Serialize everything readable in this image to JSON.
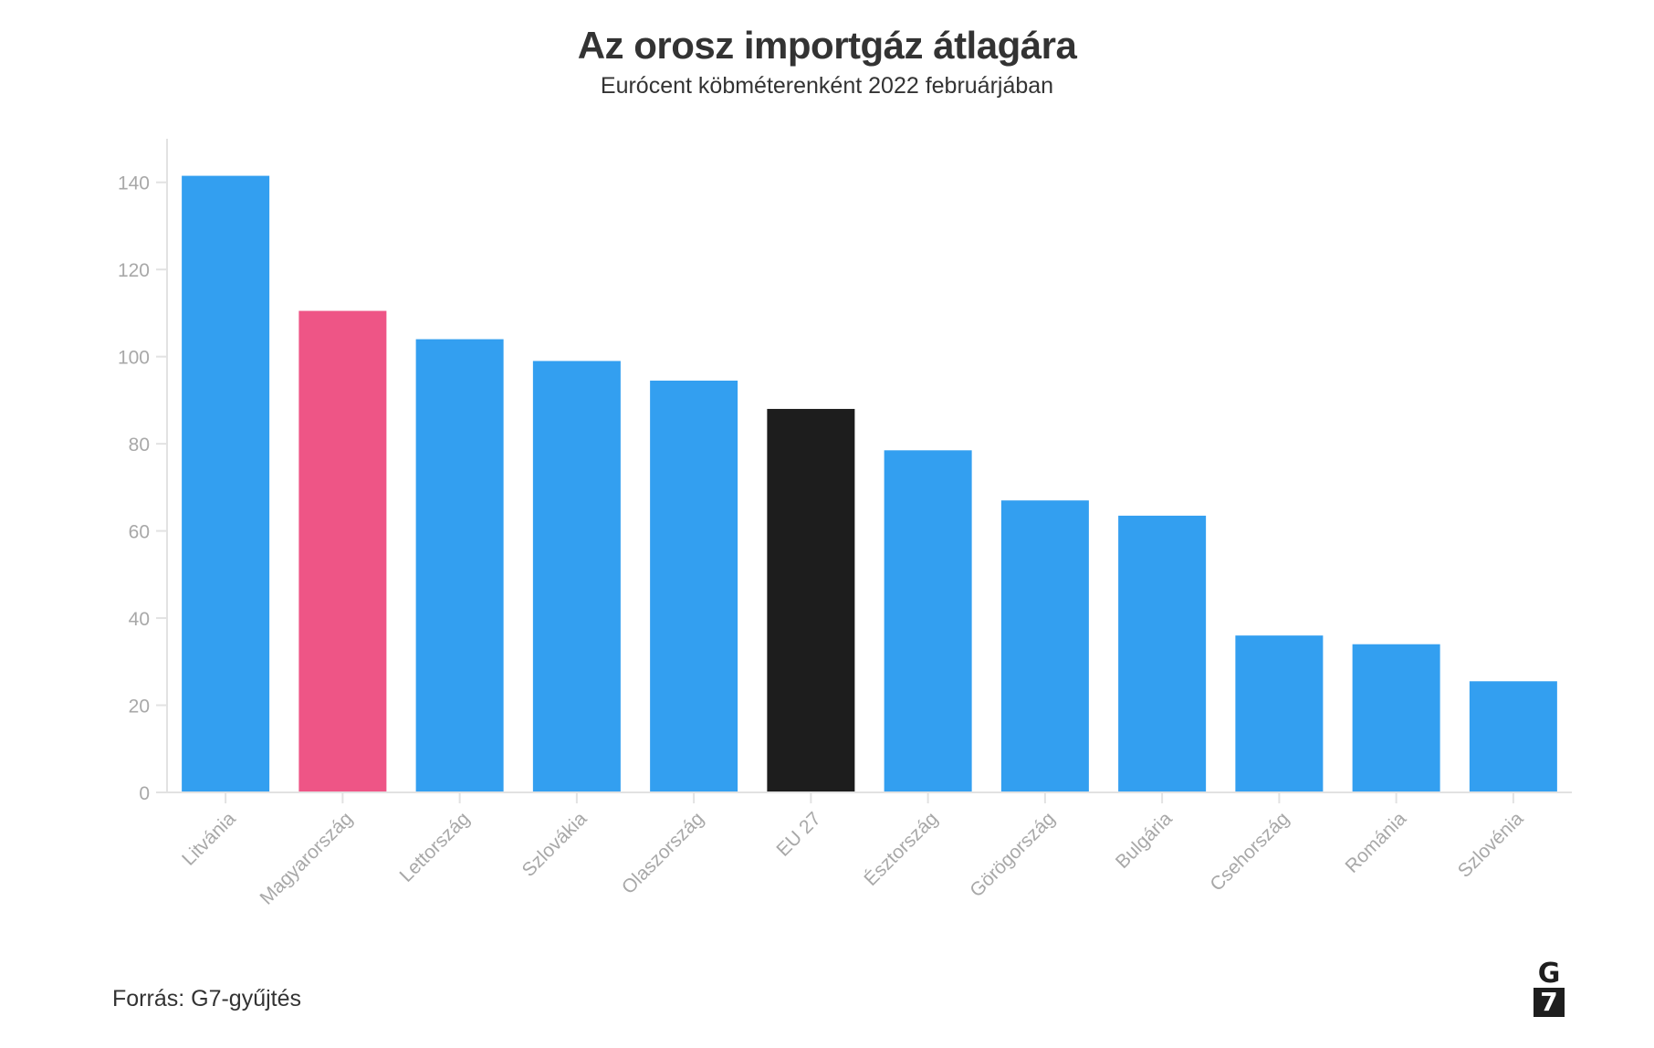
{
  "title": "Az orosz importgáz átlagára",
  "subtitle": "Eurócent köbméterenként 2022 februárjában",
  "source": "Forrás: G7-gyűjtés",
  "logo": {
    "top": "G",
    "bottom": "7"
  },
  "colors": {
    "default": "#339ff0",
    "highlight": "#ee5586",
    "eu": "#1d1d1d",
    "tick_text": "#a8a8a8",
    "axis": "#e2e2e2"
  },
  "chart_data": {
    "type": "bar",
    "categories": [
      "Litvánia",
      "Magyarország",
      "Lettország",
      "Szlovákia",
      "Olaszország",
      "EU 27",
      "Észtország",
      "Görögország",
      "Bulgária",
      "Csehország",
      "Románia",
      "Szlovénia"
    ],
    "values": [
      141.5,
      110.5,
      104,
      99,
      94.5,
      88,
      78.5,
      67,
      63.5,
      36,
      34,
      25.5
    ],
    "bar_colors": [
      "#339ff0",
      "#ee5586",
      "#339ff0",
      "#339ff0",
      "#339ff0",
      "#1d1d1d",
      "#339ff0",
      "#339ff0",
      "#339ff0",
      "#339ff0",
      "#339ff0",
      "#339ff0"
    ],
    "yticks": [
      0,
      20,
      40,
      60,
      80,
      100,
      120,
      140
    ],
    "ylim": [
      0,
      150
    ],
    "xlabel": "",
    "ylabel": "",
    "grid": false,
    "legend": "none"
  }
}
